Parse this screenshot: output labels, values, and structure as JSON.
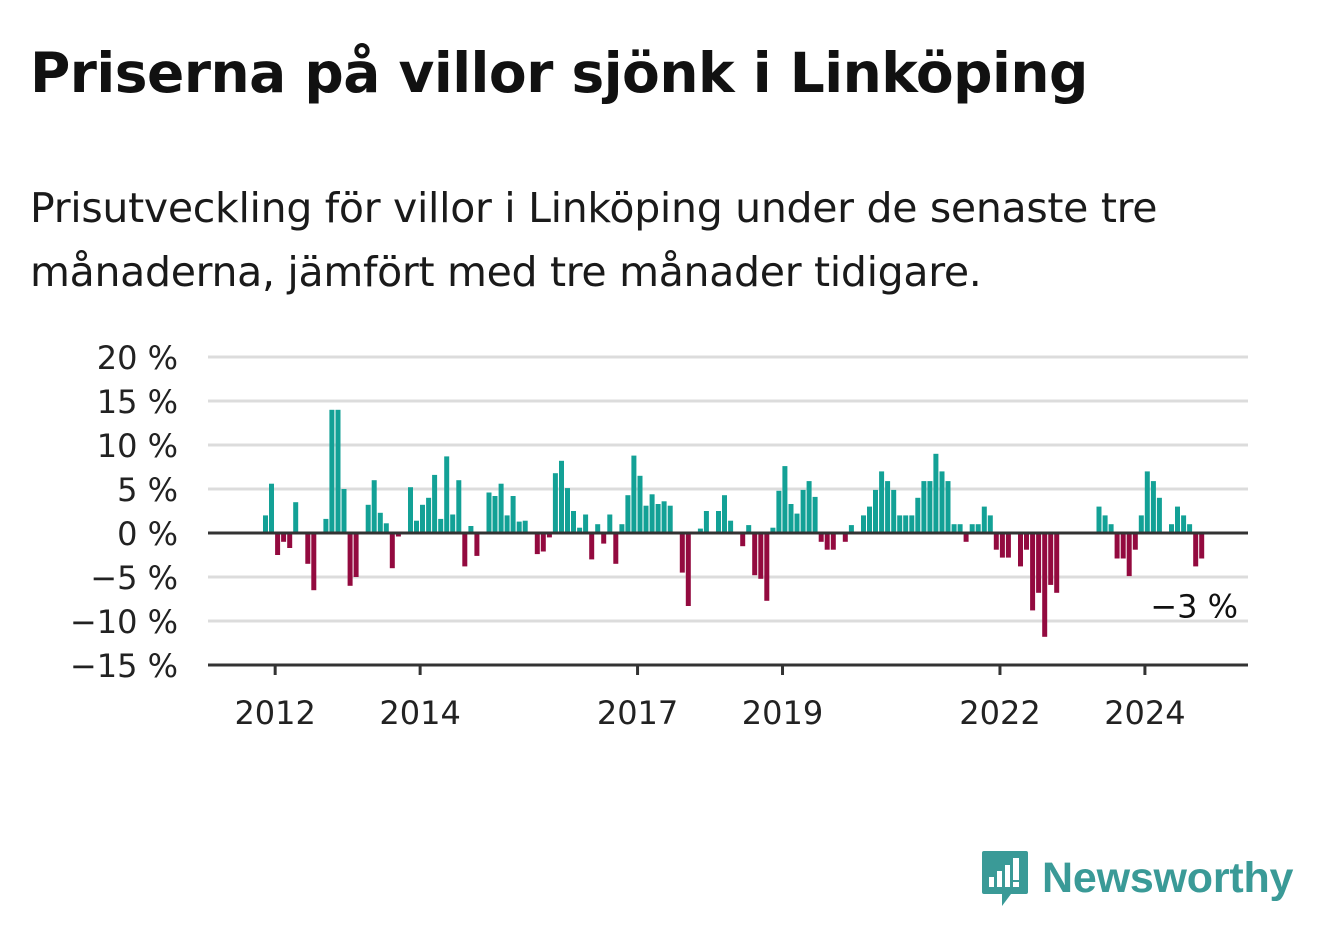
{
  "title": "Priserna på villor sjönk i Linköping",
  "subtitle": "Prisutveckling för villor i Linköping under de senaste tre månaderna, jämfört med tre månader tidigare.",
  "brand": {
    "name": "Newsworthy",
    "logo_icon": "chart-bubble-icon"
  },
  "colors": {
    "positive": "#13a196",
    "negative": "#930a3f",
    "brand": "#3a9a97",
    "axis": "#333333",
    "grid": "#dcdcdc"
  },
  "chart_data": {
    "type": "bar",
    "ylim": [
      -15,
      20
    ],
    "y_ticks": [
      20,
      15,
      10,
      5,
      0,
      -5,
      -10,
      -15
    ],
    "y_tick_labels": [
      "20 %",
      "15 %",
      "10 %",
      "5 %",
      "0 %",
      "−5 %",
      "−10 %",
      "−15 %"
    ],
    "x_ticks": [
      2012,
      2014,
      2017,
      2019,
      2022,
      2024
    ],
    "x_tick_labels": [
      "2012",
      "2014",
      "2017",
      "2019",
      "2022",
      "2024"
    ],
    "x_start": "2011-09",
    "frequency": "monthly",
    "grid": true,
    "values": [
      2,
      5.6,
      -2.5,
      -1,
      -1.7,
      3.5,
      0,
      -3.5,
      -6.5,
      0,
      1.6,
      14,
      14,
      5,
      -6,
      -5,
      0,
      3.2,
      6,
      2.3,
      1.1,
      -4,
      -0.4,
      0,
      5.2,
      1.4,
      3.2,
      4,
      6.6,
      1.6,
      8.7,
      2.1,
      6,
      -3.8,
      0.8,
      -2.6,
      0,
      4.6,
      4.2,
      5.6,
      2,
      4.2,
      1.3,
      1.4,
      0,
      -2.4,
      -2.1,
      -0.5,
      6.8,
      8.2,
      5.1,
      2.5,
      0.6,
      2.1,
      -3,
      1,
      -1.2,
      2.1,
      -3.5,
      1,
      4.3,
      8.8,
      6.5,
      3.1,
      4.4,
      3.3,
      3.6,
      3.1,
      0,
      -4.5,
      -8.3,
      0,
      0.5,
      2.5,
      0,
      2.5,
      4.3,
      1.4,
      0,
      -1.5,
      0.9,
      -4.8,
      -5.2,
      -7.7,
      0.6,
      4.8,
      7.6,
      3.3,
      2.2,
      4.9,
      5.9,
      4.1,
      -1,
      -1.9,
      -1.9,
      0,
      -1,
      0.9,
      0,
      2,
      3,
      4.9,
      7,
      5.9,
      4.9,
      2,
      2,
      2,
      4,
      5.9,
      5.9,
      9,
      7,
      5.9,
      1,
      1,
      -1,
      1,
      1,
      3,
      2,
      -1.9,
      -2.8,
      -2.8,
      0,
      -3.8,
      -1.9,
      -8.8,
      -6.8,
      -11.8,
      -5.9,
      -6.8,
      0,
      0,
      0,
      0,
      0,
      0,
      3,
      2,
      1,
      -2.9,
      -2.9,
      -4.9,
      -1.9,
      2,
      7,
      5.9,
      4,
      0,
      1,
      3,
      2,
      1,
      -3.8,
      -2.9
    ],
    "annotation": "−3 %"
  }
}
